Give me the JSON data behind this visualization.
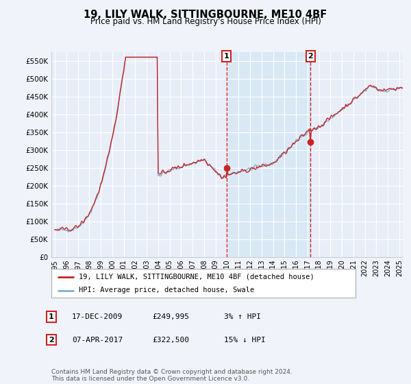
{
  "title": "19, LILY WALK, SITTINGBOURNE, ME10 4BF",
  "subtitle": "Price paid vs. HM Land Registry's House Price Index (HPI)",
  "hpi_label": "HPI: Average price, detached house, Swale",
  "property_label": "19, LILY WALK, SITTINGBOURNE, ME10 4BF (detached house)",
  "footnote": "Contains HM Land Registry data © Crown copyright and database right 2024.\nThis data is licensed under the Open Government Licence v3.0.",
  "transaction1": {
    "num": "1",
    "date": "17-DEC-2009",
    "price": "£249,995",
    "hpi": "3% ↑ HPI",
    "x": 2009.96
  },
  "transaction2": {
    "num": "2",
    "date": "07-APR-2017",
    "price": "£322,500",
    "hpi": "15% ↓ HPI",
    "x": 2017.27
  },
  "t1_price": 249995,
  "t2_price": 322500,
  "ylim": [
    0,
    575000
  ],
  "xlim_start": 1994.7,
  "xlim_end": 2025.3,
  "yticks": [
    0,
    50000,
    100000,
    150000,
    200000,
    250000,
    300000,
    350000,
    400000,
    450000,
    500000,
    550000
  ],
  "ytick_labels": [
    "£0",
    "£50K",
    "£100K",
    "£150K",
    "£200K",
    "£250K",
    "£300K",
    "£350K",
    "£400K",
    "£450K",
    "£500K",
    "£550K"
  ],
  "xtick_years": [
    1995,
    1996,
    1997,
    1998,
    1999,
    2000,
    2001,
    2002,
    2003,
    2004,
    2005,
    2006,
    2007,
    2008,
    2009,
    2010,
    2011,
    2012,
    2013,
    2014,
    2015,
    2016,
    2017,
    2018,
    2019,
    2020,
    2021,
    2022,
    2023,
    2024,
    2025
  ],
  "hpi_line_color": "#7ab0d8",
  "price_color": "#cc2222",
  "bg_color": "#f0f4fa",
  "plot_bg": "#e8eef8",
  "between_fill_color": "#d8e8f5",
  "grid_color": "#ffffff",
  "vline_color": "#cc2222",
  "legend_border": "#aaaaaa"
}
